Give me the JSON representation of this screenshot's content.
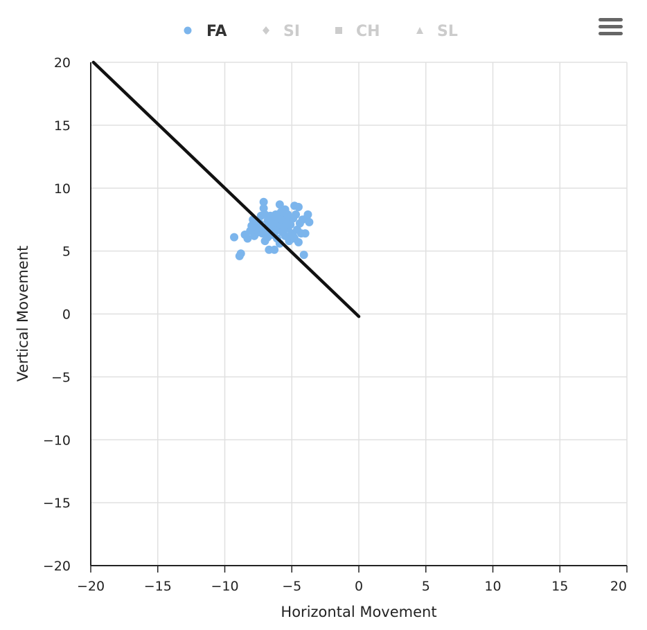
{
  "chart_data": {
    "type": "scatter",
    "title": "",
    "xlabel": "Horizontal Movement",
    "ylabel": "Vertical Movement",
    "xlim": [
      -20,
      20
    ],
    "ylim": [
      -20,
      20
    ],
    "x_ticks": [
      "−20",
      "−15",
      "−10",
      "−5",
      "0",
      "5",
      "10",
      "15",
      "20"
    ],
    "y_ticks": [
      "20",
      "15",
      "10",
      "5",
      "0",
      "−5",
      "−10",
      "−15",
      "−20"
    ],
    "grid": true,
    "legend_position": "top-center",
    "legend": [
      {
        "name": "FA",
        "symbol": "circle",
        "active": true,
        "color": "#7cb5ec"
      },
      {
        "name": "SI",
        "symbol": "diamond",
        "active": false,
        "color": "#cccccc"
      },
      {
        "name": "CH",
        "symbol": "square",
        "active": false,
        "color": "#cccccc"
      },
      {
        "name": "SL",
        "symbol": "triangle",
        "active": false,
        "color": "#cccccc"
      }
    ],
    "series": [
      {
        "name": "FA",
        "color": "#7cb5ec",
        "points": [
          [
            -9.3,
            6.1
          ],
          [
            -8.9,
            4.6
          ],
          [
            -8.8,
            4.8
          ],
          [
            -8.5,
            6.3
          ],
          [
            -8.3,
            6.0
          ],
          [
            -8.1,
            6.6
          ],
          [
            -8.0,
            7.0
          ],
          [
            -7.9,
            7.5
          ],
          [
            -7.8,
            6.2
          ],
          [
            -7.7,
            7.3
          ],
          [
            -7.6,
            6.8
          ],
          [
            -7.5,
            6.5
          ],
          [
            -7.4,
            7.2
          ],
          [
            -7.3,
            7.8
          ],
          [
            -7.2,
            6.4
          ],
          [
            -7.1,
            8.9
          ],
          [
            -7.1,
            8.4
          ],
          [
            -7.0,
            7.9
          ],
          [
            -7.0,
            5.8
          ],
          [
            -6.9,
            6.9
          ],
          [
            -6.8,
            7.4
          ],
          [
            -6.8,
            6.1
          ],
          [
            -6.7,
            5.1
          ],
          [
            -6.6,
            6.6
          ],
          [
            -6.5,
            7.1
          ],
          [
            -6.4,
            6.3
          ],
          [
            -6.4,
            7.6
          ],
          [
            -6.3,
            5.1
          ],
          [
            -6.2,
            7.9
          ],
          [
            -6.1,
            6.0
          ],
          [
            -6.0,
            6.8
          ],
          [
            -6.0,
            7.3
          ],
          [
            -5.9,
            8.7
          ],
          [
            -5.9,
            5.6
          ],
          [
            -5.8,
            8.1
          ],
          [
            -5.7,
            7.0
          ],
          [
            -5.7,
            6.5
          ],
          [
            -5.6,
            7.7
          ],
          [
            -5.5,
            8.3
          ],
          [
            -5.5,
            6.2
          ],
          [
            -5.4,
            7.4
          ],
          [
            -5.3,
            6.8
          ],
          [
            -5.2,
            5.8
          ],
          [
            -5.1,
            7.1
          ],
          [
            -5.0,
            6.4
          ],
          [
            -4.9,
            7.6
          ],
          [
            -4.8,
            8.6
          ],
          [
            -4.8,
            6.0
          ],
          [
            -4.7,
            7.9
          ],
          [
            -4.6,
            6.7
          ],
          [
            -4.5,
            5.7
          ],
          [
            -4.5,
            8.5
          ],
          [
            -4.4,
            7.2
          ],
          [
            -4.3,
            6.4
          ],
          [
            -4.2,
            7.5
          ],
          [
            -4.1,
            4.7
          ],
          [
            -4.0,
            6.4
          ],
          [
            -3.9,
            7.6
          ],
          [
            -3.8,
            7.9
          ],
          [
            -3.7,
            7.3
          ],
          [
            -6.6,
            7.8
          ],
          [
            -6.2,
            6.6
          ],
          [
            -5.8,
            7.5
          ],
          [
            -5.3,
            7.9
          ],
          [
            -4.9,
            6.2
          ],
          [
            -7.4,
            6.9
          ],
          [
            -6.9,
            6.5
          ],
          [
            -5.6,
            6.9
          ]
        ]
      },
      {
        "name": "",
        "type": "line",
        "color": "#111111",
        "points": [
          [
            -19.8,
            20
          ],
          [
            0,
            -0.2
          ]
        ]
      }
    ]
  },
  "menu": {
    "icon": "hamburger-menu-icon"
  }
}
